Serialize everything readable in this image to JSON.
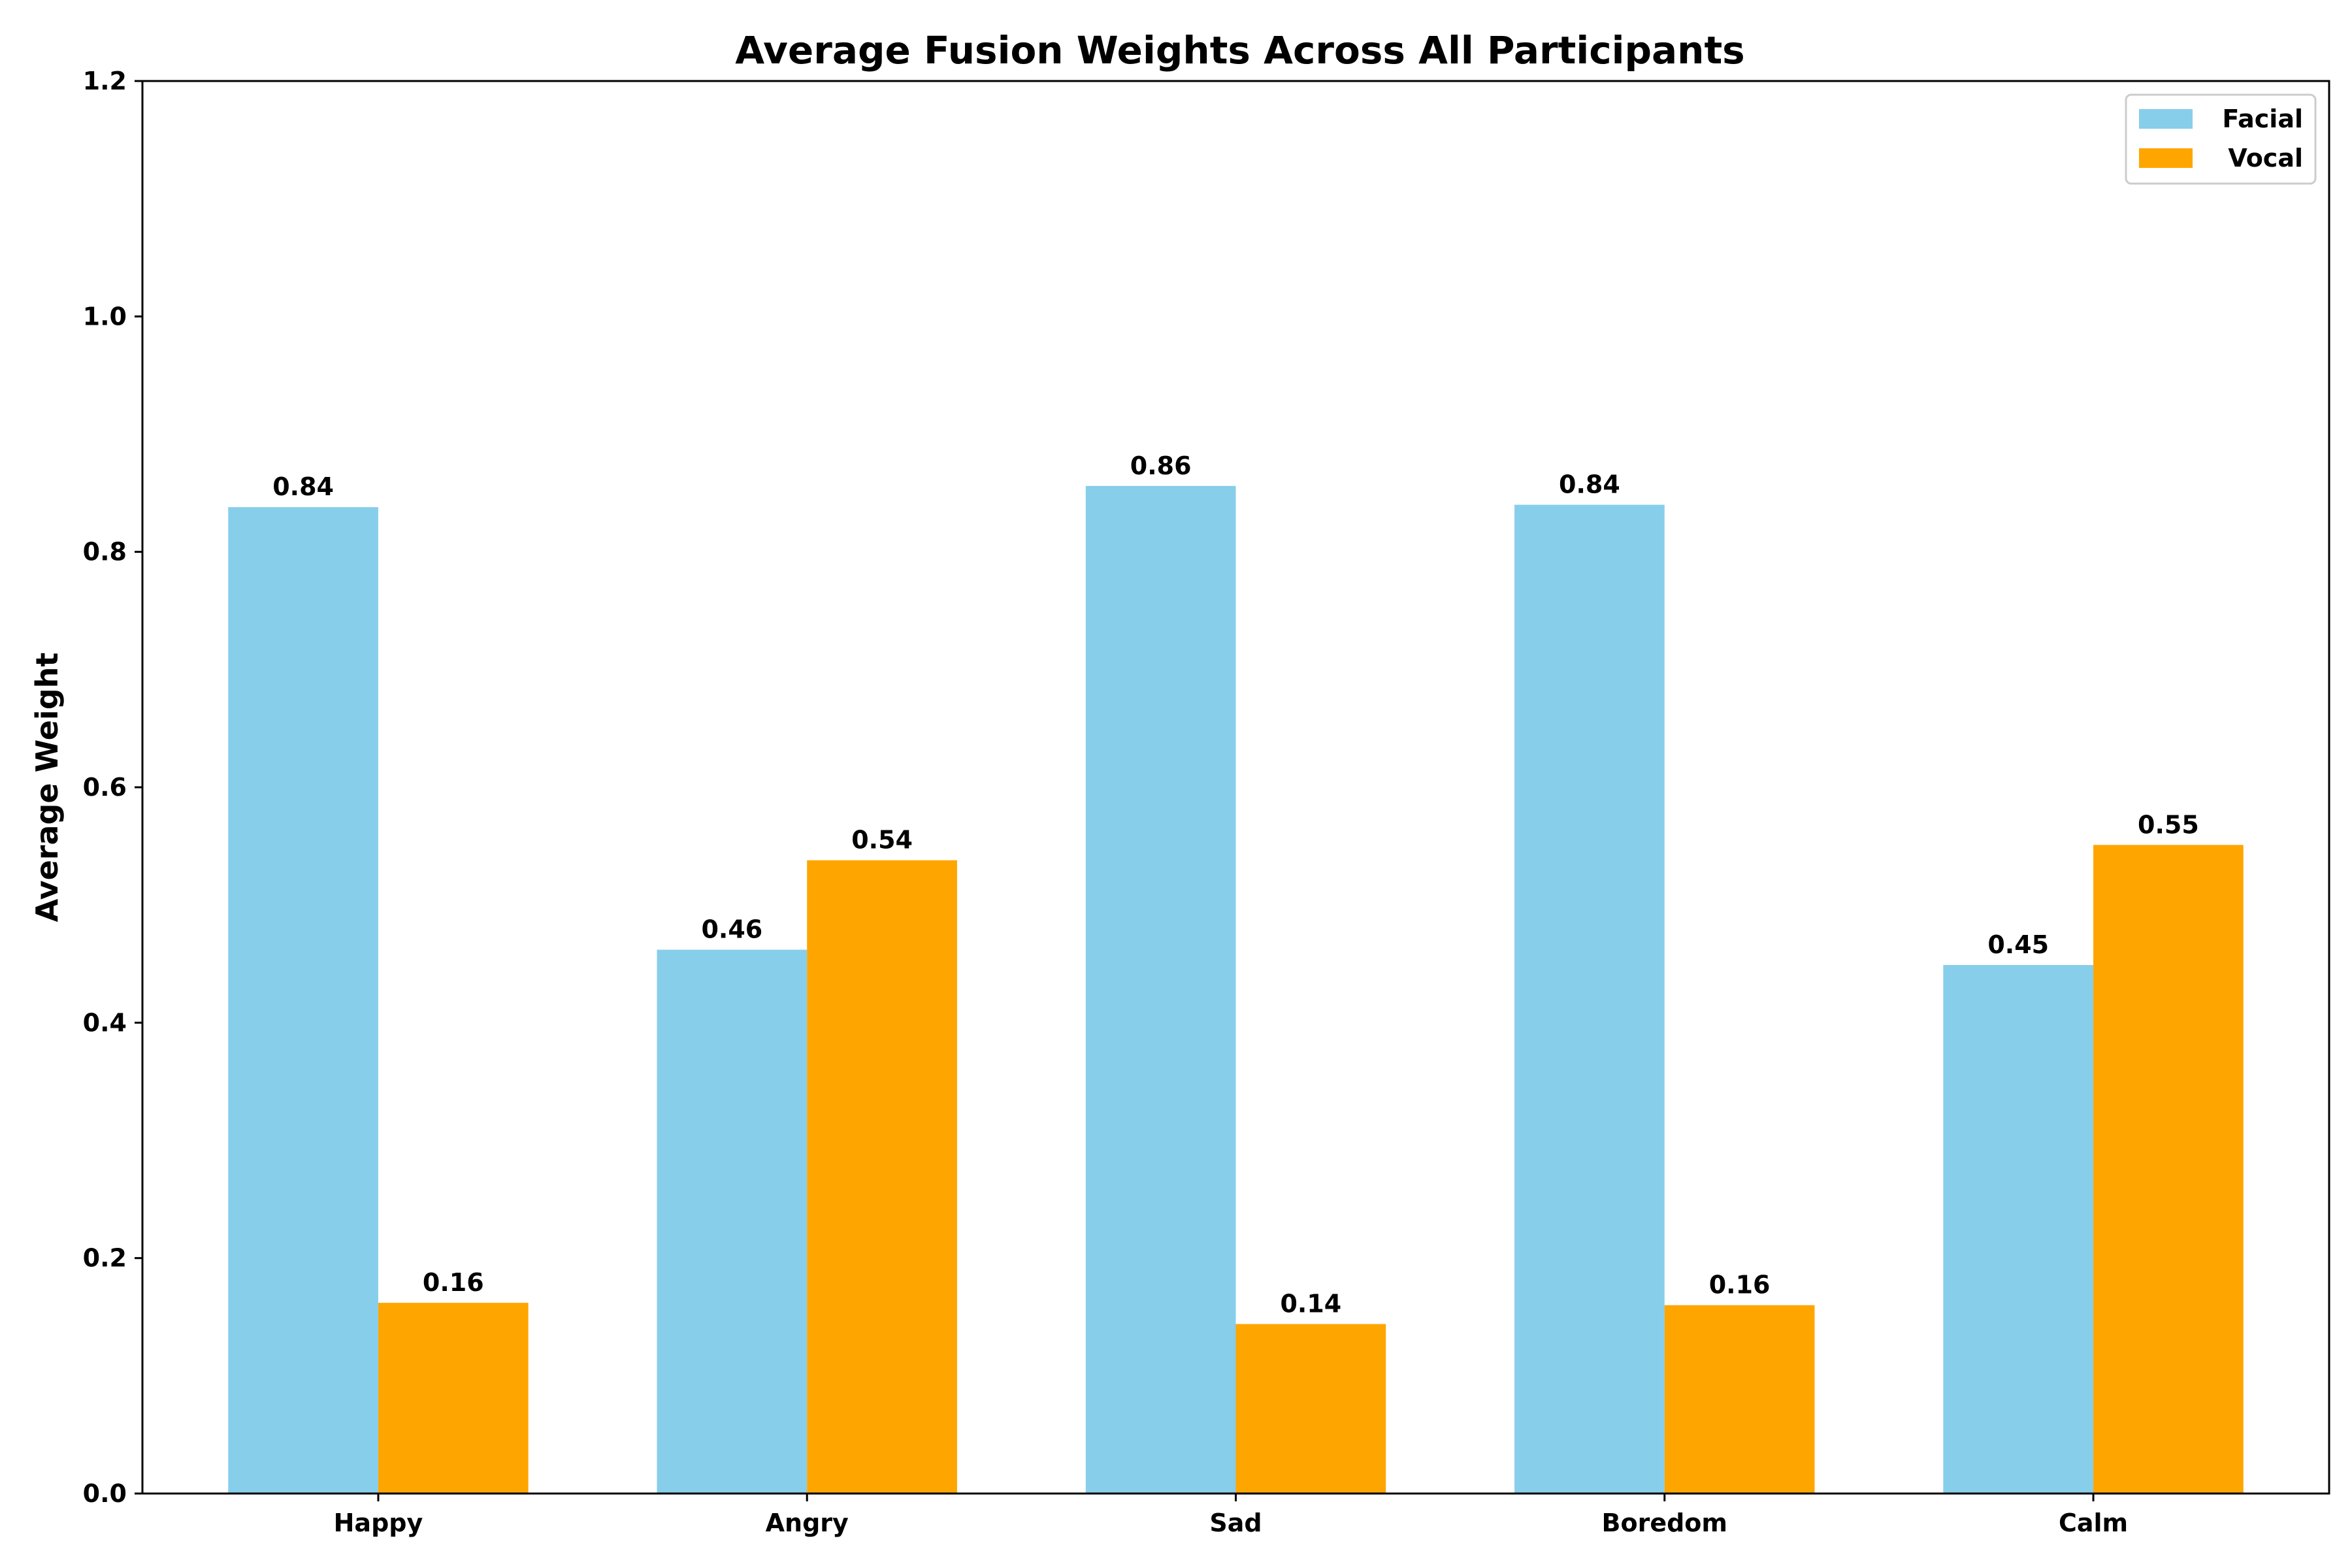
{
  "chart_data": {
    "type": "bar",
    "title": "Average Fusion Weights Across All Participants",
    "xlabel": "",
    "ylabel": "Average Weight",
    "categories": [
      "Happy",
      "Angry",
      "Sad",
      "Boredom",
      "Calm"
    ],
    "series": [
      {
        "name": "Facial",
        "color": "#87CEEB",
        "values": [
          0.838,
          0.462,
          0.856,
          0.84,
          0.449
        ],
        "labels": [
          "0.84",
          "0.46",
          "0.86",
          "0.84",
          "0.45"
        ]
      },
      {
        "name": "Vocal",
        "color": "#FFA500",
        "values": [
          0.162,
          0.538,
          0.144,
          0.16,
          0.551
        ],
        "labels": [
          "0.16",
          "0.54",
          "0.14",
          "0.16",
          "0.55"
        ]
      }
    ],
    "ylim": [
      0,
      1.2
    ],
    "yticks": [
      "0.0",
      "0.2",
      "0.4",
      "0.6",
      "0.8",
      "1.0",
      "1.2"
    ],
    "grid": false,
    "legend_position": "top-right"
  }
}
